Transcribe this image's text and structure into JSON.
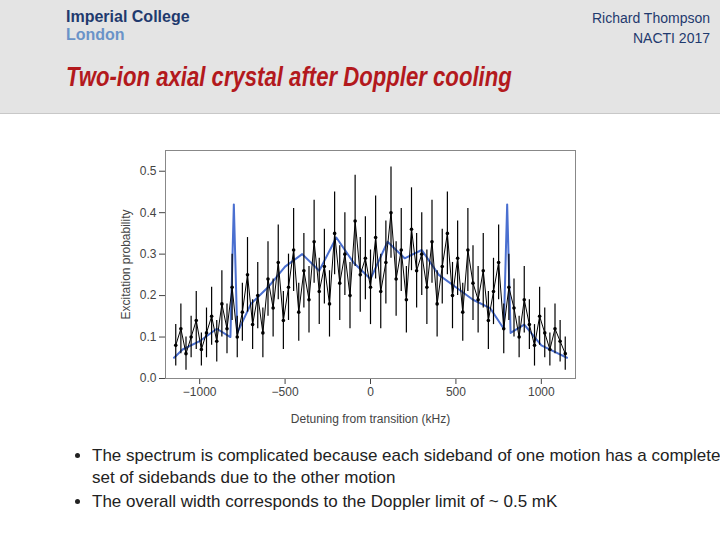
{
  "slide": {
    "logo": [
      "Imperial College",
      "London"
    ],
    "author": "Richard Thompson",
    "event": "NACTI 2017",
    "bullets": [
      "The spectrum is complicated because each sideband of one motion has a complete set of sidebands due to the other motion",
      "The overall width corresponds to the Doppler limit of ~ 0.5 mK"
    ]
  },
  "chart_data": {
    "type": "line",
    "title": "Two-ion axial crystal after Doppler cooling",
    "x_label": "Detuning from transition (kHz)",
    "y_label": "Excitation probability",
    "xlim": [
      -1200,
      1200
    ],
    "xticks": [
      -1000,
      -500,
      0,
      500,
      1000
    ],
    "ylim": [
      0,
      0.55
    ],
    "yticks": [
      {
        "value": 0,
        "label": "0.0"
      },
      0.1,
      0.2,
      0.3,
      0.4,
      0.5
    ],
    "grid": false,
    "series": [
      {
        "color": "#4a6fd0",
        "line_style": "solid",
        "x": [
          -1150,
          -1100,
          -1000,
          -900,
          -820,
          -800,
          -780,
          -700,
          -600,
          -500,
          -400,
          -300,
          -200,
          -100,
          0,
          100,
          200,
          300,
          400,
          500,
          600,
          700,
          780,
          800,
          820,
          900,
          1000,
          1100,
          1150
        ],
        "values": [
          0.05,
          0.07,
          0.09,
          0.12,
          0.1,
          0.42,
          0.11,
          0.18,
          0.22,
          0.27,
          0.3,
          0.26,
          0.34,
          0.28,
          0.24,
          0.33,
          0.29,
          0.31,
          0.25,
          0.22,
          0.19,
          0.17,
          0.12,
          0.42,
          0.11,
          0.13,
          0.08,
          0.06,
          0.05
        ]
      },
      {
        "color": "#000000",
        "line_style": "solid",
        "marker": "circle",
        "x": [
          -1140,
          -1110,
          -1080,
          -1050,
          -1020,
          -990,
          -960,
          -930,
          -900,
          -870,
          -840,
          -810,
          -780,
          -750,
          -720,
          -690,
          -660,
          -630,
          -600,
          -570,
          -540,
          -510,
          -480,
          -450,
          -420,
          -390,
          -360,
          -330,
          -300,
          -270,
          -240,
          -210,
          -180,
          -150,
          -120,
          -90,
          -60,
          -30,
          0,
          30,
          60,
          90,
          120,
          150,
          180,
          210,
          240,
          270,
          300,
          330,
          360,
          390,
          420,
          450,
          480,
          510,
          540,
          570,
          600,
          630,
          660,
          690,
          720,
          750,
          780,
          810,
          840,
          870,
          900,
          930,
          960,
          990,
          1020,
          1050,
          1080,
          1110,
          1140
        ],
        "values": [
          0.08,
          0.12,
          0.06,
          0.1,
          0.14,
          0.07,
          0.11,
          0.15,
          0.09,
          0.18,
          0.12,
          0.22,
          0.1,
          0.16,
          0.25,
          0.13,
          0.2,
          0.11,
          0.24,
          0.17,
          0.28,
          0.14,
          0.22,
          0.31,
          0.16,
          0.26,
          0.19,
          0.33,
          0.21,
          0.27,
          0.18,
          0.35,
          0.23,
          0.3,
          0.2,
          0.38,
          0.25,
          0.29,
          0.22,
          0.34,
          0.21,
          0.28,
          0.4,
          0.24,
          0.31,
          0.19,
          0.36,
          0.26,
          0.3,
          0.22,
          0.33,
          0.18,
          0.27,
          0.35,
          0.2,
          0.29,
          0.16,
          0.31,
          0.23,
          0.19,
          0.26,
          0.14,
          0.21,
          0.28,
          0.12,
          0.22,
          0.17,
          0.1,
          0.19,
          0.13,
          0.08,
          0.15,
          0.11,
          0.07,
          0.12,
          0.09,
          0.06
        ],
        "errors": [
          0.05,
          0.06,
          0.04,
          0.05,
          0.07,
          0.04,
          0.06,
          0.07,
          0.05,
          0.08,
          0.06,
          0.08,
          0.05,
          0.07,
          0.09,
          0.06,
          0.08,
          0.06,
          0.09,
          0.07,
          0.09,
          0.07,
          0.08,
          0.1,
          0.07,
          0.09,
          0.08,
          0.1,
          0.08,
          0.09,
          0.08,
          0.1,
          0.09,
          0.1,
          0.08,
          0.11,
          0.09,
          0.1,
          0.09,
          0.1,
          0.09,
          0.1,
          0.11,
          0.09,
          0.1,
          0.08,
          0.1,
          0.09,
          0.1,
          0.09,
          0.1,
          0.08,
          0.09,
          0.1,
          0.08,
          0.09,
          0.07,
          0.1,
          0.09,
          0.08,
          0.09,
          0.07,
          0.08,
          0.09,
          0.06,
          0.08,
          0.07,
          0.05,
          0.08,
          0.06,
          0.05,
          0.07,
          0.06,
          0.04,
          0.06,
          0.05,
          0.04
        ]
      }
    ]
  }
}
